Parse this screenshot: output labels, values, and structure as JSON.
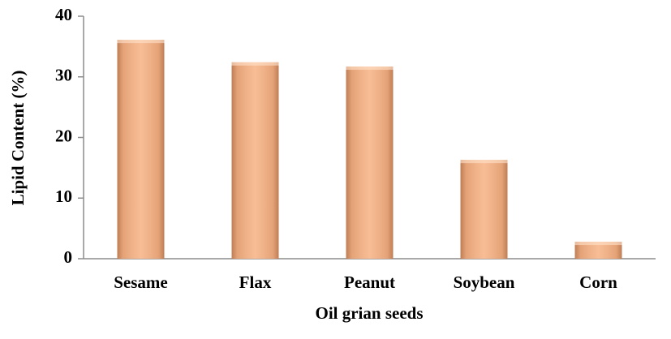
{
  "chart_data": {
    "type": "bar",
    "x_label": "Oil grian seeds",
    "y_label": "Lipid Content (%)",
    "categories": [
      "Sesame",
      "Flax",
      "Peanut",
      "Soybean",
      "Corn"
    ],
    "values": [
      36.1,
      32.4,
      31.7,
      16.3,
      2.8
    ],
    "color": "#f7b487",
    "ylim": [
      0,
      40
    ],
    "yticks": [
      0,
      10,
      20,
      30,
      40
    ],
    "grid": false
  }
}
